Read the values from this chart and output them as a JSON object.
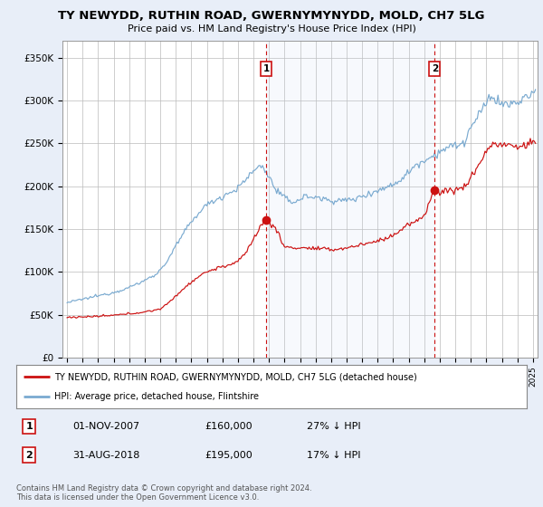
{
  "title": "TY NEWYDD, RUTHIN ROAD, GWERNYMYNYDD, MOLD, CH7 5LG",
  "subtitle": "Price paid vs. HM Land Registry's House Price Index (HPI)",
  "ylim": [
    0,
    370000
  ],
  "xlim_start": 1994.7,
  "xlim_end": 2025.3,
  "background_color": "#e8eef8",
  "plot_bg_color": "#ffffff",
  "grid_color": "#bbbbbb",
  "hpi_color": "#7aaad0",
  "property_color": "#cc1111",
  "sale1_date": 2007.83,
  "sale1_price": 160000,
  "sale2_date": 2018.67,
  "sale2_price": 195000,
  "legend_property": "TY NEWYDD, RUTHIN ROAD, GWERNYMYNYDD, MOLD, CH7 5LG (detached house)",
  "legend_hpi": "HPI: Average price, detached house, Flintshire",
  "annotation1_date_str": "01-NOV-2007",
  "annotation1_price_str": "£160,000",
  "annotation1_pct": "27% ↓ HPI",
  "annotation2_date_str": "31-AUG-2018",
  "annotation2_price_str": "£195,000",
  "annotation2_pct": "17% ↓ HPI",
  "footer": "Contains HM Land Registry data © Crown copyright and database right 2024.\nThis data is licensed under the Open Government Licence v3.0."
}
